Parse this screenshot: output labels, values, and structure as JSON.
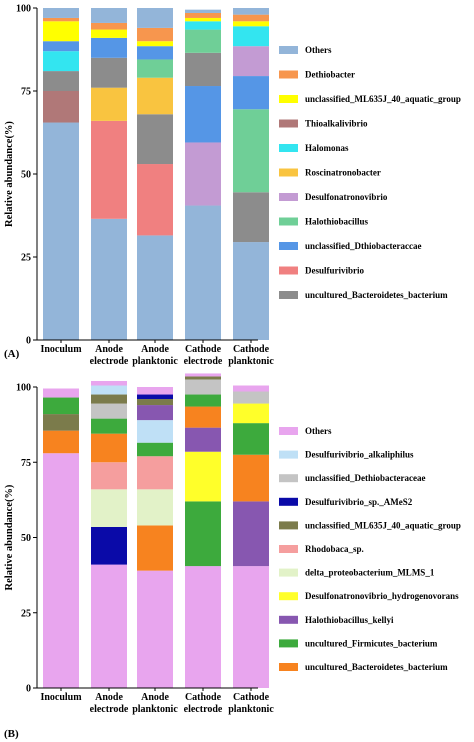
{
  "chart_data": [
    {
      "panel_label": "(A)",
      "type": "bar",
      "stacked": true,
      "ylabel": "Relative abundance(%)",
      "ylim": [
        0,
        100
      ],
      "yticks": [
        "0",
        "25",
        "50",
        "75",
        "100"
      ],
      "categories": [
        {
          "line1": "Inoculum",
          "line2": ""
        },
        {
          "line1": "Anode",
          "line2": "electrode"
        },
        {
          "line1": "Anode",
          "line2": "planktonic"
        },
        {
          "line1": "Cathode",
          "line2": "electrode"
        },
        {
          "line1": "Cathode",
          "line2": "planktonic"
        }
      ],
      "series": [
        {
          "name": "",
          "color": "#93B5D9",
          "values": [
            65.5,
            36.5,
            31.5,
            40.5,
            29.5
          ]
        },
        {
          "name": "Desulfurivibrio",
          "color": "#F08080",
          "values": [
            0,
            29.5,
            21.5,
            0,
            0
          ]
        },
        {
          "name": "Thioalkalivibrio",
          "color": "#B07878",
          "values": [
            9.5,
            0,
            0,
            0,
            0
          ]
        },
        {
          "name": "uncultured_Bacteroidetes_bacterium",
          "color": "#8C8C8C",
          "values": [
            6,
            0,
            15,
            0,
            15
          ]
        },
        {
          "name": "Desulfonatronovibrio",
          "color": "#C39BD3",
          "values": [
            0,
            0,
            0,
            19,
            0
          ]
        },
        {
          "name": "Halothiobacillus",
          "color": "#6FCF97",
          "values": [
            0,
            0,
            0,
            0,
            25
          ]
        },
        {
          "name": "unclassified_Dthiobacteraccae",
          "color": "#5596E6",
          "values": [
            0,
            0,
            0,
            17,
            10
          ]
        },
        {
          "name": "",
          "color": "#8C8C8C",
          "values": [
            0,
            0,
            0,
            10,
            0
          ]
        },
        {
          "name": "",
          "color": "#6FCF97",
          "values": [
            0,
            0,
            0,
            7,
            0
          ]
        },
        {
          "name": "",
          "color": "#C39BD3",
          "values": [
            0,
            0,
            0,
            0,
            9
          ]
        },
        {
          "name": "Roscinatronobacter",
          "color": "#F9C440",
          "values": [
            0,
            10,
            11,
            0,
            0
          ]
        },
        {
          "name": "",
          "color": "#8C8C8C",
          "values": [
            0,
            9,
            0,
            0,
            0
          ]
        },
        {
          "name": "",
          "color": "#6FCF97",
          "values": [
            0,
            0,
            5.5,
            0,
            0
          ]
        },
        {
          "name": "Halomonas",
          "color": "#33E5F0",
          "values": [
            6,
            0,
            0,
            2.5,
            6
          ]
        },
        {
          "name": "",
          "color": "#5596E6",
          "values": [
            3,
            6,
            4,
            0,
            0
          ]
        },
        {
          "name": "unclassified_ML635J_40_aquatic_group",
          "color": "#FFFF00",
          "values": [
            6,
            2.5,
            1.5,
            1,
            1.5
          ]
        },
        {
          "name": "Dethiobacter",
          "color": "#F7964E",
          "values": [
            1,
            2,
            4,
            1.5,
            2
          ]
        },
        {
          "name": "Others",
          "color": "#93B5D9",
          "values": [
            3,
            4.5,
            6,
            1,
            2
          ]
        }
      ],
      "legend": [
        {
          "label": "Others",
          "color": "#93B5D9"
        },
        {
          "label": "Dethiobacter",
          "color": "#F7964E"
        },
        {
          "label": "unclassified_ML635J_40_aquatic_group",
          "color": "#FFFF00"
        },
        {
          "label": "Thioalkalivibrio",
          "color": "#B07878"
        },
        {
          "label": "Halomonas",
          "color": "#33E5F0"
        },
        {
          "label": "Roscinatronobacter",
          "color": "#F9C440"
        },
        {
          "label": "Desulfonatronovibrio",
          "color": "#C39BD3"
        },
        {
          "label": "Halothiobacillus",
          "color": "#6FCF97"
        },
        {
          "label": "unclassified_Dthiobacteraccae",
          "color": "#5596E6"
        },
        {
          "label": "Desulfurivibrio",
          "color": "#F08080"
        },
        {
          "label": "uncultured_Bacteroidetes_bacterium",
          "color": "#8C8C8C"
        }
      ]
    },
    {
      "panel_label": "(B)",
      "type": "bar",
      "stacked": true,
      "ylabel": "Relative abundance(%)",
      "ylim": [
        0,
        100
      ],
      "yticks": [
        "0",
        "25",
        "50",
        "75",
        "100"
      ],
      "categories": [
        {
          "line1": "Inoculum",
          "line2": ""
        },
        {
          "line1": "Anode",
          "line2": "electrode"
        },
        {
          "line1": "Anode",
          "line2": "planktonic"
        },
        {
          "line1": "Cathode",
          "line2": "electrode"
        },
        {
          "line1": "Cathode",
          "line2": "planktonic"
        }
      ],
      "series": [
        {
          "name": "",
          "color": "#E8A5EE",
          "values": [
            78,
            41,
            39,
            40.5,
            40.5
          ]
        },
        {
          "name": "Halothiobacillus_kellyi",
          "color": "#8757B0",
          "values": [
            0,
            0,
            0,
            0,
            21.5
          ]
        },
        {
          "name": "uncultured_Firmicutes_bacterium",
          "color": "#3DAA3D",
          "values": [
            0,
            0,
            0,
            21.5,
            0
          ]
        },
        {
          "name": "Desulfurivibrio_sp._AMeS2",
          "color": "#0A0AA8",
          "values": [
            0,
            12.5,
            0,
            0,
            0
          ]
        },
        {
          "name": "uncultured_Bacteroidetes_bacterium",
          "color": "#F7831F",
          "values": [
            7.5,
            0,
            15,
            0,
            15.5
          ]
        },
        {
          "name": "Desulfonatronovibrio_hydrogenovorans",
          "color": "#FFFF2A",
          "values": [
            0,
            0,
            0,
            16.5,
            0
          ]
        },
        {
          "name": "delta_proteobacterium_MLMS_1",
          "color": "#E2F2C8",
          "values": [
            0,
            12.5,
            12,
            0,
            0
          ]
        },
        {
          "name": "",
          "color": "#8757B0",
          "values": [
            0,
            0,
            0,
            8,
            0
          ]
        },
        {
          "name": "Rhodobaca_sp.",
          "color": "#F59E9E",
          "values": [
            0,
            9,
            11,
            0,
            0
          ]
        },
        {
          "name": "",
          "color": "#3DAA3D",
          "values": [
            0,
            0,
            0,
            0,
            10.5
          ]
        },
        {
          "name": "",
          "color": "#F7831F",
          "values": [
            0,
            9.5,
            0,
            7,
            0
          ]
        },
        {
          "name": "unclassified_ML635J_40_aquatic_group",
          "color": "#7B7B4B",
          "values": [
            5.5,
            0,
            0,
            0,
            0
          ]
        },
        {
          "name": "",
          "color": "#FFFF2A",
          "values": [
            0,
            0,
            0,
            0,
            6.5
          ]
        },
        {
          "name": "",
          "color": "#3DAA3D",
          "values": [
            5.5,
            5,
            4.5,
            4,
            0
          ]
        },
        {
          "name": "Desulfurivibrio_alkaliphilus",
          "color": "#BFE0F6",
          "values": [
            0,
            0,
            7.5,
            0,
            0
          ]
        },
        {
          "name": "",
          "color": "#8757B0",
          "values": [
            0,
            0,
            5,
            0,
            0
          ]
        },
        {
          "name": "unclassified_Dethiobacteraceae",
          "color": "#C4C4C4",
          "values": [
            0,
            5,
            0,
            5,
            4
          ]
        },
        {
          "name": "",
          "color": "#7B7B4B",
          "values": [
            0,
            3,
            2,
            1,
            0
          ]
        },
        {
          "name": "",
          "color": "#BFE0F6",
          "values": [
            0,
            3,
            0,
            0,
            0
          ]
        },
        {
          "name": "",
          "color": "#0A0AA8",
          "values": [
            0,
            0,
            1.5,
            0,
            0
          ]
        },
        {
          "name": "Others",
          "color": "#E8A5EE",
          "values": [
            3,
            1.5,
            2.5,
            1,
            2
          ]
        }
      ],
      "legend": [
        {
          "label": "Others",
          "color": "#E8A5EE"
        },
        {
          "label": "Desulfurivibrio_alkaliphilus",
          "color": "#BFE0F6"
        },
        {
          "label": "unclassified_Dethiobacteraceae",
          "color": "#C4C4C4"
        },
        {
          "label": "Desulfurivibrio_sp._AMeS2",
          "color": "#0A0AA8"
        },
        {
          "label": "unclassified_ML635J_40_aquatic_group",
          "color": "#7B7B4B"
        },
        {
          "label": "Rhodobaca_sp.",
          "color": "#F59E9E"
        },
        {
          "label": "delta_proteobacterium_MLMS_1",
          "color": "#E2F2C8"
        },
        {
          "label": "Desulfonatronovibrio_hydrogenovorans",
          "color": "#FFFF2A"
        },
        {
          "label": "Halothiobacillus_kellyi",
          "color": "#8757B0"
        },
        {
          "label": "uncultured_Firmicutes_bacterium",
          "color": "#3DAA3D"
        },
        {
          "label": "uncultured_Bacteroidetes_bacterium",
          "color": "#F7831F"
        }
      ]
    }
  ]
}
